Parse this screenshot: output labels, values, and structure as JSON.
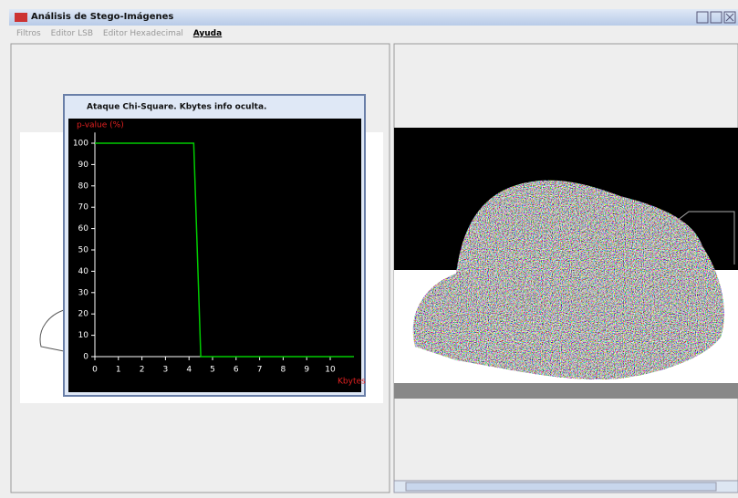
{
  "window": {
    "title": "Análisis de Stego-Imágenes",
    "menu": [
      "Filtros",
      "Editor LSB",
      "Editor Hexadecimal",
      "Ayuda"
    ]
  },
  "frame": {
    "title": "Ataque Chi-Square. Kbytes info oculta."
  },
  "chart_data": {
    "type": "line",
    "x_label": "Kbytes",
    "y_label": "p-value (%)",
    "x": [
      0,
      4.2,
      4.5,
      11
    ],
    "series": [
      {
        "color": "#00cc00",
        "values": [
          100,
          100,
          0,
          0
        ]
      }
    ],
    "xlim": [
      0,
      11
    ],
    "ylim": [
      0,
      105
    ],
    "xticks": [
      0,
      1,
      2,
      3,
      4,
      5,
      6,
      7,
      8,
      9,
      10
    ],
    "yticks": [
      0,
      10,
      20,
      30,
      40,
      50,
      60,
      70,
      80,
      90,
      100
    ]
  }
}
